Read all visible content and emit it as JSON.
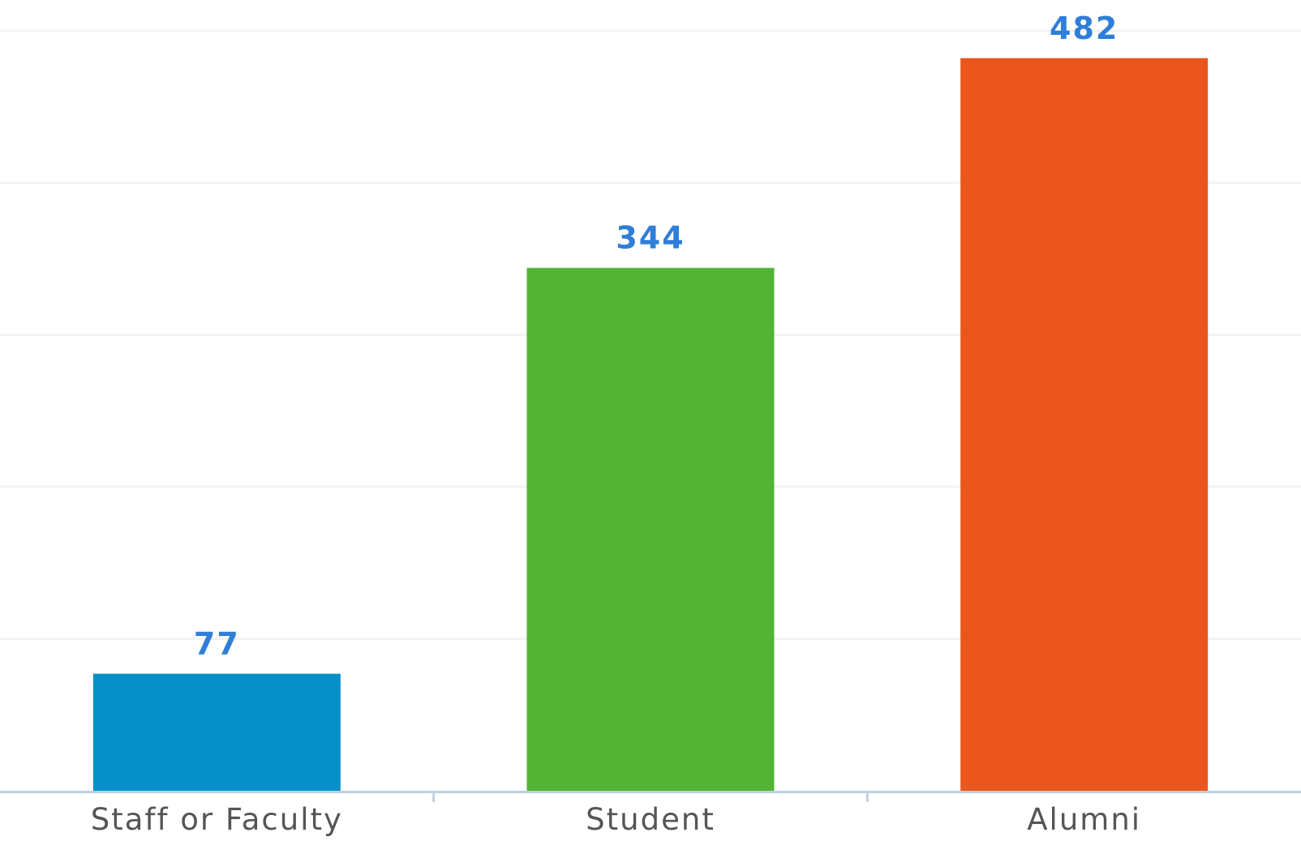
{
  "chart_data": {
    "type": "bar",
    "title": "",
    "xlabel": "",
    "ylabel": "",
    "categories": [
      "Staff or Faculty",
      "Student",
      "Alumni"
    ],
    "values": [
      77,
      344,
      482
    ],
    "value_labels": [
      "77",
      "344",
      "482"
    ],
    "bar_colors": [
      "#068fc8",
      "#52b335",
      "#eb561d"
    ],
    "value_label_color": "#2f7ed8",
    "axis_color": "#c0d0e0",
    "grid_color": "#f2f2f2",
    "grid": true,
    "gridline_values": [
      0,
      100,
      200,
      300,
      400,
      500
    ],
    "ylim": [
      0,
      500
    ],
    "legend": "none"
  }
}
